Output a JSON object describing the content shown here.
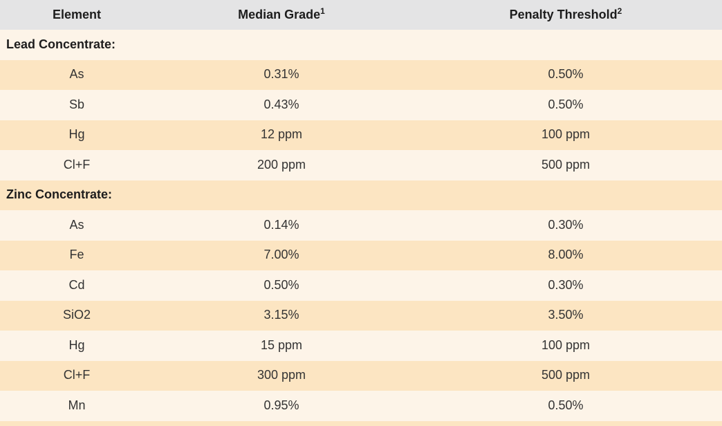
{
  "table": {
    "columns": [
      {
        "label": "Element",
        "superscript": ""
      },
      {
        "label": "Median Grade",
        "superscript": "1"
      },
      {
        "label": "Penalty Threshold",
        "superscript": "2"
      }
    ],
    "sections": [
      "Lead Concentrate:",
      "Zinc Concentrate:"
    ],
    "rows": [
      {
        "type": "section",
        "label": "Lead Concentrate:"
      },
      {
        "type": "data",
        "element": "As",
        "median_grade": "0.31%",
        "penalty_threshold": "0.50%"
      },
      {
        "type": "data",
        "element": "Sb",
        "median_grade": "0.43%",
        "penalty_threshold": "0.50%"
      },
      {
        "type": "data",
        "element": "Hg",
        "median_grade": "12 ppm",
        "penalty_threshold": "100 ppm"
      },
      {
        "type": "data",
        "element": "Cl+F",
        "median_grade": "200 ppm",
        "penalty_threshold": "500 ppm"
      },
      {
        "type": "section",
        "label": "Zinc Concentrate:"
      },
      {
        "type": "data",
        "element": "As",
        "median_grade": "0.14%",
        "penalty_threshold": "0.30%"
      },
      {
        "type": "data",
        "element": "Fe",
        "median_grade": "7.00%",
        "penalty_threshold": "8.00%"
      },
      {
        "type": "data",
        "element": "Cd",
        "median_grade": "0.50%",
        "penalty_threshold": "0.30%"
      },
      {
        "type": "data",
        "element": "SiO2",
        "median_grade": "3.15%",
        "penalty_threshold": "3.50%"
      },
      {
        "type": "data",
        "element": "Hg",
        "median_grade": "15 ppm",
        "penalty_threshold": "100 ppm"
      },
      {
        "type": "data",
        "element": "Cl+F",
        "median_grade": "300 ppm",
        "penalty_threshold": "500 ppm"
      },
      {
        "type": "data",
        "element": "Mn",
        "median_grade": "0.95%",
        "penalty_threshold": "0.50%"
      }
    ],
    "colors": {
      "header_bg": "#e4e4e5",
      "row_cream": "#fdf4e8",
      "row_peach": "#fce5c2",
      "text_bold": "#1d1d1d",
      "text_regular": "#333333"
    }
  }
}
